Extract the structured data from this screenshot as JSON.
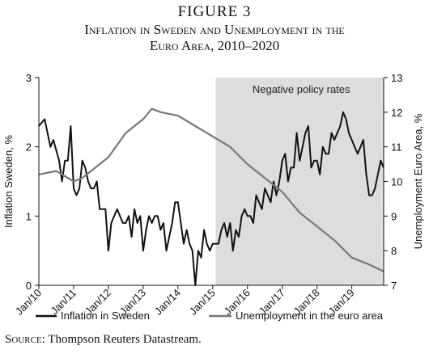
{
  "figure_label": "FIGURE 3",
  "title_line1": "Inflation in Sweden and Unemployment in the",
  "title_line2": "Euro Area, 2010–2020",
  "source_key": "Source:",
  "source_text": " Thompson Reuters Datastream.",
  "chart_data": {
    "type": "line",
    "x_axis": {
      "start": "Jan/10",
      "end": "Dec/19",
      "tick_labels": [
        "Jan/10",
        "Jan/11",
        "Jan/12",
        "Jan/13",
        "Jan/14",
        "Jan/15",
        "Jan/16",
        "Jan/17",
        "Jan/18",
        "Jan/19"
      ]
    },
    "y_left": {
      "label": "Inflation Sweden, %",
      "range": [
        0,
        3
      ],
      "ticks": [
        0,
        1,
        2,
        3
      ]
    },
    "y_right": {
      "label": "Unemployment Euro Area, %",
      "range": [
        7,
        13
      ],
      "ticks": [
        7,
        8,
        9,
        10,
        11,
        12,
        13
      ]
    },
    "shaded_region": {
      "start": "Feb/15",
      "end": "Dec/19",
      "label": "Negative policy rates",
      "color": "#dddddd"
    },
    "grid": false,
    "legend_position": "bottom",
    "series": [
      {
        "name": "Inflation in Sweden",
        "axis": "left",
        "color": "#111111",
        "points": [
          [
            "Jan/10",
            2.3
          ],
          [
            "Mar/10",
            2.4
          ],
          [
            "May/10",
            2.0
          ],
          [
            "Jun/10",
            2.1
          ],
          [
            "Aug/10",
            1.8
          ],
          [
            "Sep/10",
            1.5
          ],
          [
            "Oct/10",
            1.8
          ],
          [
            "Nov/10",
            1.8
          ],
          [
            "Dec/10",
            2.3
          ],
          [
            "Jan/11",
            1.4
          ],
          [
            "Feb/11",
            1.3
          ],
          [
            "Mar/11",
            1.4
          ],
          [
            "Apr/11",
            1.8
          ],
          [
            "May/11",
            1.7
          ],
          [
            "Jun/11",
            1.5
          ],
          [
            "Jul/11",
            1.4
          ],
          [
            "Aug/11",
            1.4
          ],
          [
            "Sep/11",
            1.5
          ],
          [
            "Oct/11",
            1.1
          ],
          [
            "Nov/11",
            1.1
          ],
          [
            "Dec/11",
            1.1
          ],
          [
            "Jan/12",
            0.5
          ],
          [
            "Feb/12",
            0.9
          ],
          [
            "Mar/12",
            1.0
          ],
          [
            "Apr/12",
            1.1
          ],
          [
            "May/12",
            1.0
          ],
          [
            "Jun/12",
            0.9
          ],
          [
            "Jul/12",
            0.9
          ],
          [
            "Aug/12",
            1.0
          ],
          [
            "Sep/12",
            0.7
          ],
          [
            "Oct/12",
            1.1
          ],
          [
            "Nov/12",
            0.9
          ],
          [
            "Dec/12",
            1.0
          ],
          [
            "Jan/13",
            0.5
          ],
          [
            "Feb/13",
            0.8
          ],
          [
            "Mar/13",
            1.0
          ],
          [
            "Apr/13",
            0.9
          ],
          [
            "May/13",
            1.0
          ],
          [
            "Jun/13",
            1.0
          ],
          [
            "Jul/13",
            0.8
          ],
          [
            "Aug/13",
            0.9
          ],
          [
            "Sep/13",
            0.5
          ],
          [
            "Oct/13",
            0.7
          ],
          [
            "Nov/13",
            0.9
          ],
          [
            "Dec/13",
            1.2
          ],
          [
            "Jan/14",
            1.2
          ],
          [
            "Feb/14",
            0.9
          ],
          [
            "Mar/14",
            0.6
          ],
          [
            "Apr/14",
            0.8
          ],
          [
            "May/14",
            0.6
          ],
          [
            "Jun/14",
            0.5
          ],
          [
            "Jul/14",
            0.0
          ],
          [
            "Aug/14",
            0.5
          ],
          [
            "Sep/14",
            0.4
          ],
          [
            "Oct/14",
            0.8
          ],
          [
            "Nov/14",
            0.6
          ],
          [
            "Dec/14",
            0.5
          ],
          [
            "Jan/15",
            0.6
          ],
          [
            "Feb/15",
            0.6
          ],
          [
            "Mar/15",
            0.6
          ],
          [
            "Apr/15",
            0.8
          ],
          [
            "May/15",
            0.9
          ],
          [
            "Jun/15",
            0.7
          ],
          [
            "Jul/15",
            0.9
          ],
          [
            "Aug/15",
            0.5
          ],
          [
            "Sep/15",
            0.8
          ],
          [
            "Oct/15",
            0.7
          ],
          [
            "Nov/15",
            1.0
          ],
          [
            "Dec/15",
            1.1
          ],
          [
            "Jan/16",
            1.0
          ],
          [
            "Feb/16",
            1.0
          ],
          [
            "Mar/16",
            0.9
          ],
          [
            "Apr/16",
            1.3
          ],
          [
            "May/16",
            1.2
          ],
          [
            "Jun/16",
            1.1
          ],
          [
            "Jul/16",
            1.4
          ],
          [
            "Aug/16",
            1.3
          ],
          [
            "Sep/16",
            1.2
          ],
          [
            "Oct/16",
            1.5
          ],
          [
            "Nov/16",
            1.3
          ],
          [
            "Dec/16",
            1.5
          ],
          [
            "Jan/17",
            1.8
          ],
          [
            "Feb/17",
            1.9
          ],
          [
            "Mar/17",
            1.5
          ],
          [
            "Apr/17",
            1.7
          ],
          [
            "May/17",
            1.7
          ],
          [
            "Jun/17",
            2.2
          ],
          [
            "Jul/17",
            1.8
          ],
          [
            "Aug/17",
            2.0
          ],
          [
            "Sep/17",
            2.2
          ],
          [
            "Oct/17",
            2.3
          ],
          [
            "Nov/17",
            1.7
          ],
          [
            "Dec/17",
            1.8
          ],
          [
            "Jan/18",
            1.8
          ],
          [
            "Feb/18",
            1.6
          ],
          [
            "Mar/18",
            2.0
          ],
          [
            "Apr/18",
            1.9
          ],
          [
            "May/18",
            1.9
          ],
          [
            "Jun/18",
            2.2
          ],
          [
            "Jul/18",
            2.1
          ],
          [
            "Aug/18",
            2.2
          ],
          [
            "Sep/18",
            2.3
          ],
          [
            "Oct/18",
            2.5
          ],
          [
            "Nov/18",
            2.4
          ],
          [
            "Dec/18",
            2.2
          ],
          [
            "Jan/19",
            2.1
          ],
          [
            "Feb/19",
            2.0
          ],
          [
            "Mar/19",
            1.9
          ],
          [
            "Apr/19",
            2.0
          ],
          [
            "May/19",
            2.1
          ],
          [
            "Jun/19",
            1.6
          ],
          [
            "Jul/19",
            1.3
          ],
          [
            "Aug/19",
            1.3
          ],
          [
            "Sep/19",
            1.4
          ],
          [
            "Oct/19",
            1.6
          ],
          [
            "Nov/19",
            1.8
          ],
          [
            "Dec/19",
            1.7
          ]
        ]
      },
      {
        "name": "Unemployment in the euro area",
        "axis": "right",
        "color": "#777777",
        "points": [
          [
            "Jan/10",
            10.2
          ],
          [
            "Jul/10",
            10.3
          ],
          [
            "Jan/11",
            10.0
          ],
          [
            "Apr/11",
            10.1
          ],
          [
            "Jan/12",
            10.7
          ],
          [
            "Jul/12",
            11.4
          ],
          [
            "Jan/13",
            11.8
          ],
          [
            "Apr/13",
            12.1
          ],
          [
            "Jul/13",
            12.0
          ],
          [
            "Jan/14",
            11.9
          ],
          [
            "Jul/14",
            11.6
          ],
          [
            "Jan/15",
            11.3
          ],
          [
            "Jul/15",
            11.0
          ],
          [
            "Jan/16",
            10.5
          ],
          [
            "Jul/16",
            10.1
          ],
          [
            "Jan/17",
            9.7
          ],
          [
            "Jul/17",
            9.1
          ],
          [
            "Jan/18",
            8.7
          ],
          [
            "Jul/18",
            8.3
          ],
          [
            "Jan/19",
            7.8
          ],
          [
            "Jul/19",
            7.6
          ],
          [
            "Dec/19",
            7.4
          ]
        ]
      }
    ]
  }
}
